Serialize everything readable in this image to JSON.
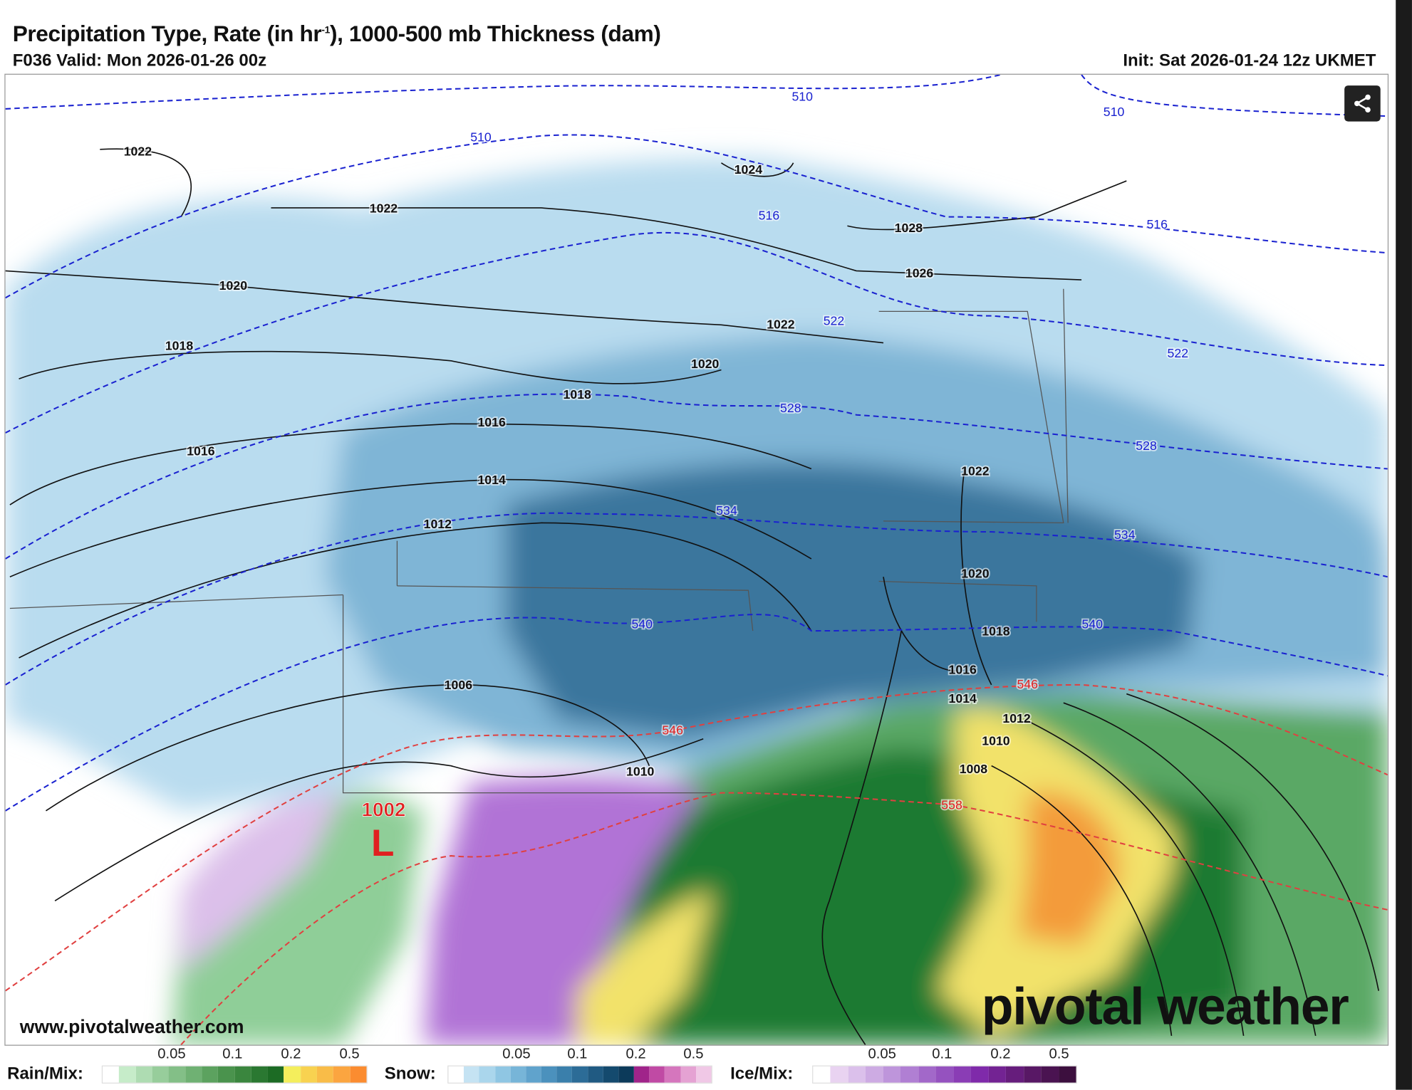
{
  "header": {
    "title_main": "Precipitation Type, Rate (in hr",
    "title_sup": "-1",
    "title_rest": "), 1000-500 mb Thickness (dam)",
    "valid": "F036 Valid: Mon 2026-01-26 00z",
    "init": "Init: Sat 2026-01-24 12z UKMET"
  },
  "map": {
    "isobar_labels": [
      "1022",
      "1022",
      "1020",
      "1018",
      "1016",
      "1016",
      "1014",
      "1012",
      "1006",
      "1010",
      "1024",
      "1028",
      "1026",
      "1022",
      "1020",
      "1018",
      "1022",
      "1020",
      "1018",
      "1016",
      "1014",
      "1012",
      "1010",
      "1008"
    ],
    "thickness_labels": [
      "510",
      "510",
      "510",
      "516",
      "516",
      "522",
      "522",
      "528",
      "528",
      "534",
      "534",
      "540",
      "540",
      "546",
      "546",
      "558"
    ],
    "low": {
      "pressure": "1002",
      "symbol": "L"
    },
    "watermark_url": "www.pivotalweather.com",
    "logo": "pivotal weather",
    "share_icon": "share-icon",
    "colors": {
      "snow_light": "#b9dcef",
      "snow_mid": "#6fa9cc",
      "snow_dark": "#2f6b93",
      "rain_light": "#b7e3bf",
      "rain_mid": "#5aa865",
      "rain_dark": "#1f7a32",
      "rain_heavy_yellow": "#f2e26a",
      "rain_heavy_orange": "#f39b3b",
      "ice_light": "#dcc0ea",
      "ice_dark": "#8b2ab5",
      "isobar": "#111111",
      "thickness_cold": "#1a22d0",
      "thickness_warm": "#e04040"
    }
  },
  "legend": {
    "ticks": [
      "0.05",
      "0.1",
      "0.2",
      "0.5"
    ],
    "rain": {
      "label": "Rain/Mix:",
      "colors": [
        "#ffffff",
        "#c6ecc9",
        "#aedcb2",
        "#97cd9b",
        "#83bf87",
        "#6fb173",
        "#5ca25f",
        "#4a934d",
        "#3a863e",
        "#2a7831",
        "#1c6b24",
        "#f4ee5c",
        "#f8d250",
        "#f9bc48",
        "#fba540",
        "#fb8c30"
      ]
    },
    "snow": {
      "label": "Snow:",
      "colors": [
        "#ffffff",
        "#c5e3f3",
        "#aad6ec",
        "#8fc6e3",
        "#77b5d8",
        "#60a3cc",
        "#4b91bd",
        "#3a7fab",
        "#2c6c97",
        "#205a82",
        "#144a6e",
        "#0c3a5a",
        "#a0248a",
        "#c04aa4",
        "#d576bd",
        "#e5a2d3",
        "#f0c8e6"
      ]
    },
    "ice": {
      "label": "Ice/Mix:",
      "colors": [
        "#ffffff",
        "#e9d3f1",
        "#dbc0eb",
        "#cdabe3",
        "#be95db",
        "#b07fd3",
        "#a268c9",
        "#9552bf",
        "#8a3db5",
        "#7f2aaa",
        "#732393",
        "#661d7c",
        "#581865",
        "#4a1351",
        "#3c0f3e"
      ]
    }
  }
}
